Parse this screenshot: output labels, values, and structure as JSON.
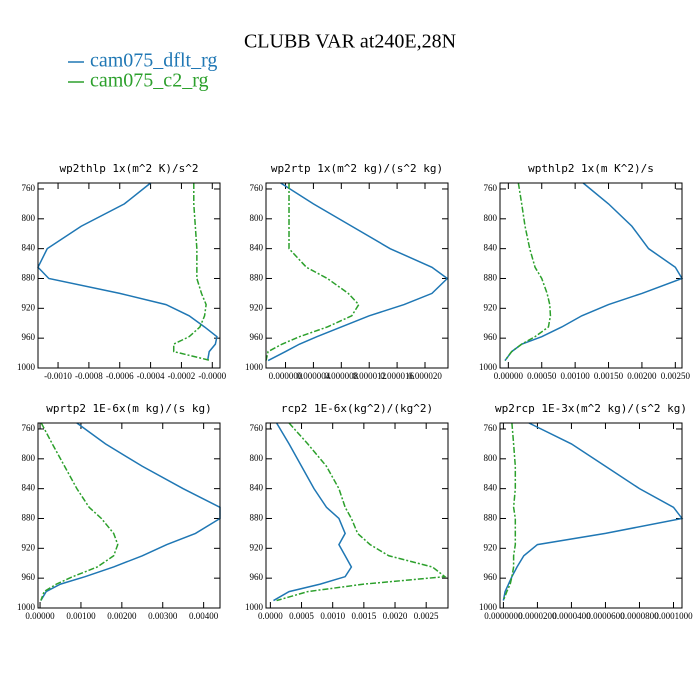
{
  "title": "CLUBB VAR at240E,28N",
  "legend": [
    {
      "name": "cam075_dflt_rg",
      "color": "#1f77b4"
    },
    {
      "name": "cam075_c2_rg",
      "color": "#2ca02c"
    }
  ],
  "chart_data": [
    {
      "type": "line",
      "title": "wp2thlp  1x(m^2 K)/s^2",
      "y": [
        752,
        780,
        810,
        840,
        865,
        880,
        900,
        915,
        930,
        945,
        958,
        968,
        978,
        990
      ],
      "ylim": [
        1000,
        752
      ],
      "yticks": [
        760,
        800,
        840,
        880,
        920,
        960,
        1000
      ],
      "xlim": [
        -0.00113,
        5e-05
      ],
      "xticks": [
        {
          "value": -0.001,
          "label": "-0.0010"
        },
        {
          "value": -0.0008,
          "label": "-0.0008"
        },
        {
          "value": -0.0006,
          "label": "-0.0006"
        },
        {
          "value": -0.0004,
          "label": "-0.0004"
        },
        {
          "value": -0.0002,
          "label": "-0.0002"
        },
        {
          "value": 0,
          "label": "-0.0000"
        }
      ],
      "series": [
        {
          "color": "#1f77b4",
          "values": [
            -0.0004,
            -0.00057,
            -0.00085,
            -0.00107,
            -0.00113,
            -0.00106,
            -0.0006,
            -0.0003,
            -0.00015,
            -5e-05,
            3e-05,
            2e-05,
            -2e-05,
            -3e-05
          ]
        },
        {
          "color": "#2ca02c",
          "values": [
            -0.00012,
            -0.00012,
            -0.00011,
            -0.0001,
            -0.0001,
            -0.0001,
            -7e-05,
            -4e-05,
            -5e-05,
            -8e-05,
            -0.00015,
            -0.00025,
            -0.00025,
            -1e-05
          ]
        }
      ]
    },
    {
      "type": "line",
      "title": "wp2rtp  1x(m^2 kg)/(s^2 kg)",
      "y": [
        752,
        780,
        810,
        840,
        865,
        880,
        900,
        915,
        930,
        945,
        958,
        968,
        978,
        990
      ],
      "ylim": [
        1000,
        752
      ],
      "yticks": [
        760,
        800,
        840,
        880,
        920,
        960,
        1000
      ],
      "xlim": [
        -2.8e-06,
        2.33e-05
      ],
      "xticks": [
        {
          "value": 0,
          "label": "0.000000"
        },
        {
          "value": 4e-06,
          "label": "0.000004"
        },
        {
          "value": 8e-06,
          "label": "0.000008"
        },
        {
          "value": 1.2e-05,
          "label": "0.000012"
        },
        {
          "value": 1.6e-05,
          "label": "0.000016"
        },
        {
          "value": 2e-05,
          "label": "0.000020"
        }
      ],
      "series": [
        {
          "color": "#1f77b4",
          "values": [
            -7e-07,
            4e-06,
            9.5e-06,
            1.5e-05,
            2.1e-05,
            2.32e-05,
            2.1e-05,
            1.7e-05,
            1.2e-05,
            8e-06,
            4.5e-06,
            2e-06,
            0,
            -2.5e-06
          ]
        },
        {
          "color": "#2ca02c",
          "values": [
            5e-07,
            5e-07,
            5e-07,
            5e-07,
            3e-06,
            6e-06,
            9e-06,
            1.05e-05,
            9.5e-06,
            6e-06,
            2e-06,
            -5e-07,
            -2.5e-06,
            -2.8e-06
          ]
        }
      ]
    },
    {
      "type": "line",
      "title": "wpthlp2  1x(m K^2)/s",
      "y": [
        752,
        780,
        810,
        840,
        865,
        880,
        900,
        915,
        930,
        945,
        958,
        968,
        978,
        990
      ],
      "ylim": [
        1000,
        752
      ],
      "yticks": [
        760,
        800,
        840,
        880,
        920,
        960,
        1000
      ],
      "xlim": [
        -0.000125,
        0.0026
      ],
      "xticks": [
        {
          "value": 0,
          "label": "0.00000"
        },
        {
          "value": 0.0005,
          "label": "0.00050"
        },
        {
          "value": 0.001,
          "label": "0.00100"
        },
        {
          "value": 0.0015,
          "label": "0.00150"
        },
        {
          "value": 0.002,
          "label": "0.00200"
        },
        {
          "value": 0.0025,
          "label": "0.00250"
        }
      ],
      "series": [
        {
          "color": "#1f77b4",
          "values": [
            0.00112,
            0.0015,
            0.00185,
            0.0021,
            0.0025,
            0.0026,
            0.002,
            0.0015,
            0.0011,
            0.0008,
            0.0005,
            0.0002,
            5e-05,
            -5e-05
          ]
        },
        {
          "color": "#2ca02c",
          "values": [
            0.00015,
            0.0002,
            0.00025,
            0.00032,
            0.0004,
            0.0005,
            0.00058,
            0.00062,
            0.00063,
            0.0006,
            0.0004,
            0.0002,
            5e-05,
            -5e-05
          ]
        }
      ]
    },
    {
      "type": "line",
      "title": "wprtp2  1E-6x(m kg)/(s kg)",
      "y": [
        752,
        780,
        810,
        840,
        865,
        880,
        900,
        915,
        930,
        945,
        958,
        968,
        978,
        990
      ],
      "ylim": [
        1000,
        752
      ],
      "yticks": [
        760,
        800,
        840,
        880,
        920,
        960,
        1000
      ],
      "xlim": [
        -5e-05,
        0.0044
      ],
      "xticks": [
        {
          "value": 0,
          "label": "0.00000"
        },
        {
          "value": 0.001,
          "label": "0.00100"
        },
        {
          "value": 0.002,
          "label": "0.00200"
        },
        {
          "value": 0.003,
          "label": "0.00300"
        },
        {
          "value": 0.004,
          "label": "0.00400"
        }
      ],
      "series": [
        {
          "color": "#1f77b4",
          "values": [
            0.0009,
            0.0016,
            0.0025,
            0.0035,
            0.0044,
            0.0044,
            0.0038,
            0.0031,
            0.0025,
            0.0018,
            0.0011,
            0.0005,
            0.00015,
            2e-05
          ]
        },
        {
          "color": "#2ca02c",
          "values": [
            3e-05,
            0.0003,
            0.0006,
            0.0009,
            0.0012,
            0.0015,
            0.0018,
            0.0019,
            0.0018,
            0.0014,
            0.0008,
            0.0004,
            0.0001,
            2e-05
          ]
        }
      ]
    },
    {
      "type": "line",
      "title": "rcp2  1E-6x(kg^2)/(kg^2)",
      "y": [
        752,
        780,
        810,
        840,
        865,
        880,
        900,
        915,
        930,
        945,
        958,
        968,
        978,
        990
      ],
      "ylim": [
        1000,
        752
      ],
      "yticks": [
        760,
        800,
        840,
        880,
        920,
        960,
        1000
      ],
      "xlim": [
        -7e-05,
        0.00285
      ],
      "xticks": [
        {
          "value": 0,
          "label": "0.0000"
        },
        {
          "value": 0.0005,
          "label": "0.0005"
        },
        {
          "value": 0.001,
          "label": "0.0010"
        },
        {
          "value": 0.0015,
          "label": "0.0015"
        },
        {
          "value": 0.002,
          "label": "0.0020"
        },
        {
          "value": 0.0025,
          "label": "0.0025"
        }
      ],
      "series": [
        {
          "color": "#1f77b4",
          "values": [
            0.0001,
            0.0003,
            0.0005,
            0.0007,
            0.0009,
            0.0011,
            0.0012,
            0.0011,
            0.0012,
            0.0013,
            0.0012,
            0.0008,
            0.0003,
            5e-05
          ]
        },
        {
          "color": "#2ca02c",
          "values": [
            0.0003,
            0.0006,
            0.0009,
            0.0011,
            0.0012,
            0.0013,
            0.0014,
            0.0016,
            0.0019,
            0.0026,
            0.0028,
            0.0015,
            0.0006,
            0.0001
          ]
        }
      ]
    },
    {
      "type": "line",
      "title": "wp2rcp  1E-3x(m^2 kg)/(s^2 kg)",
      "y": [
        752,
        780,
        810,
        840,
        865,
        880,
        900,
        915,
        930,
        945,
        958,
        968,
        978,
        990
      ],
      "ylim": [
        1000,
        752
      ],
      "yticks": [
        760,
        800,
        840,
        880,
        920,
        960,
        1000
      ],
      "xlim": [
        -2e-06,
        0.000105
      ],
      "xticks": [
        {
          "value": 0,
          "label": "0.0000000"
        },
        {
          "value": 2e-05,
          "label": "0.0000200"
        },
        {
          "value": 4e-05,
          "label": "0.0000400"
        },
        {
          "value": 6e-05,
          "label": "0.0000600"
        },
        {
          "value": 8e-05,
          "label": "0.0000800"
        },
        {
          "value": 0.0001,
          "label": "0.0001000"
        }
      ],
      "series": [
        {
          "color": "#1f77b4",
          "values": [
            1.5e-05,
            4e-05,
            6e-05,
            8e-05,
            0.0001,
            0.000105,
            6e-05,
            2e-05,
            1.2e-05,
            8e-06,
            5e-06,
            3e-06,
            1e-06,
            0
          ]
        },
        {
          "color": "#2ca02c",
          "values": [
            5e-06,
            6e-06,
            7e-06,
            7e-06,
            6e-06,
            7e-06,
            7e-06,
            7e-06,
            6e-06,
            6e-06,
            5e-06,
            4e-06,
            2e-06,
            0
          ]
        }
      ]
    }
  ]
}
